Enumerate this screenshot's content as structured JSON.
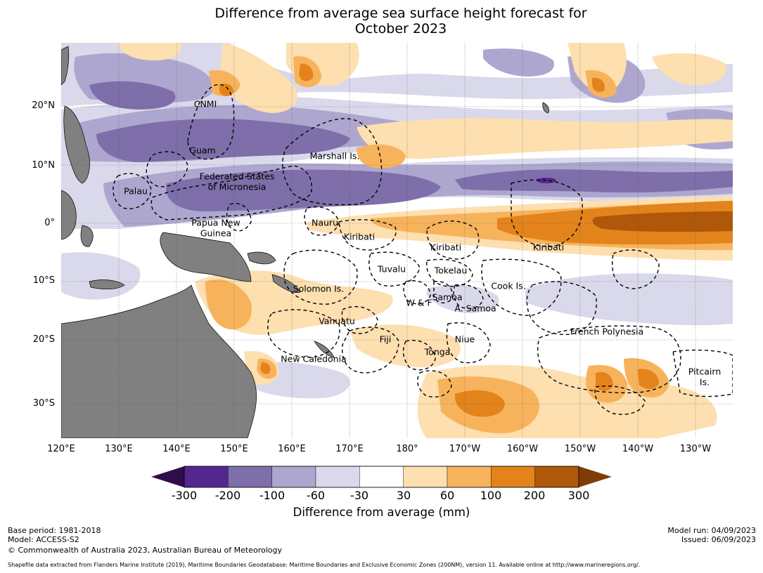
{
  "title": {
    "line1": "Difference from average sea surface height forecast for",
    "line2": "October 2023"
  },
  "colors": {
    "land": "#808080",
    "ocean": "#ffffff",
    "boundary": "#000000"
  },
  "map": {
    "lon_range": [
      120,
      238
    ],
    "lat_range": [
      -36,
      31
    ],
    "lat_labels": [
      "20°N",
      "10°N",
      "0°",
      "10°S",
      "20°S",
      "30°S"
    ],
    "lon_labels": [
      "120°E",
      "130°E",
      "140°E",
      "150°E",
      "160°E",
      "170°E",
      "180°",
      "170°W",
      "160°W",
      "150°W",
      "140°W",
      "130°W"
    ],
    "regions": [
      {
        "name": "cnmi",
        "text": "CNMI"
      },
      {
        "name": "guam",
        "text": "Guam"
      },
      {
        "name": "marshall",
        "text": "Marshall Is."
      },
      {
        "name": "fsm-1",
        "text": "Federated States"
      },
      {
        "name": "fsm-2",
        "text": "of Micronesia"
      },
      {
        "name": "palau",
        "text": "Palau"
      },
      {
        "name": "png-1",
        "text": "Papua New"
      },
      {
        "name": "png-2",
        "text": "Guinea"
      },
      {
        "name": "nauru",
        "text": "Nauru"
      },
      {
        "name": "kiribati-w",
        "text": "Kiribati"
      },
      {
        "name": "kiribati-c",
        "text": "Kiribati"
      },
      {
        "name": "kiribati-e",
        "text": "Kiribati"
      },
      {
        "name": "tuvalu",
        "text": "Tuvalu"
      },
      {
        "name": "tokelau",
        "text": "Tokelau"
      },
      {
        "name": "cook",
        "text": "Cook Is."
      },
      {
        "name": "solomon",
        "text": "Solomon Is."
      },
      {
        "name": "samoa",
        "text": "Samoa"
      },
      {
        "name": "wf",
        "text": "W & F"
      },
      {
        "name": "asamoa",
        "text": "A. Samoa"
      },
      {
        "name": "vanuatu",
        "text": "Vanuatu"
      },
      {
        "name": "fiji",
        "text": "Fiji"
      },
      {
        "name": "niue",
        "text": "Niue"
      },
      {
        "name": "tonga",
        "text": "Tonga"
      },
      {
        "name": "newcal",
        "text": "New Caledonia"
      },
      {
        "name": "frenchpoly",
        "text": "French Polynesia"
      },
      {
        "name": "pitcairn-1",
        "text": "Pitcairn"
      },
      {
        "name": "pitcairn-2",
        "text": "Is."
      }
    ]
  },
  "legend": {
    "title": "Difference from average (mm)",
    "ticks": [
      "-300",
      "-200",
      "-100",
      "-60",
      "-30",
      "30",
      "60",
      "100",
      "200",
      "300"
    ],
    "bins": [
      {
        "label": "-300 to -200",
        "color": "#54278f"
      },
      {
        "label": "-200 to -100",
        "color": "#7e6ea9"
      },
      {
        "label": "-100 to -60",
        "color": "#ada7cf"
      },
      {
        "label": "-60 to -30",
        "color": "#d9d9eb"
      },
      {
        "label": "-30 to 30",
        "color": "#ffffff"
      },
      {
        "label": "30 to 60",
        "color": "#fddfb0"
      },
      {
        "label": "60 to 100",
        "color": "#f7b35c"
      },
      {
        "label": "100 to 200",
        "color": "#e3831b"
      },
      {
        "label": "200 to 300",
        "color": "#b05809"
      }
    ],
    "under_color": "#2f0c4a",
    "over_color": "#7f3b08"
  },
  "footer": {
    "base_period": "Base period: 1981-2018",
    "model": "Model: ACCESS-S2",
    "copyright": "© Commonwealth of Australia 2023, Australian Bureau of Meteorology",
    "model_run": "Model run: 04/09/2023",
    "issued": "Issued: 06/09/2023",
    "shapefile": "Shapefile data extracted from Flanders Marine Institute (2019), Maritime Boundaries Geodatabase: Maritime Boundaries and Exclusive Economic Zones (200NM), version 11. Available online at http://www.marineregions.org/."
  }
}
